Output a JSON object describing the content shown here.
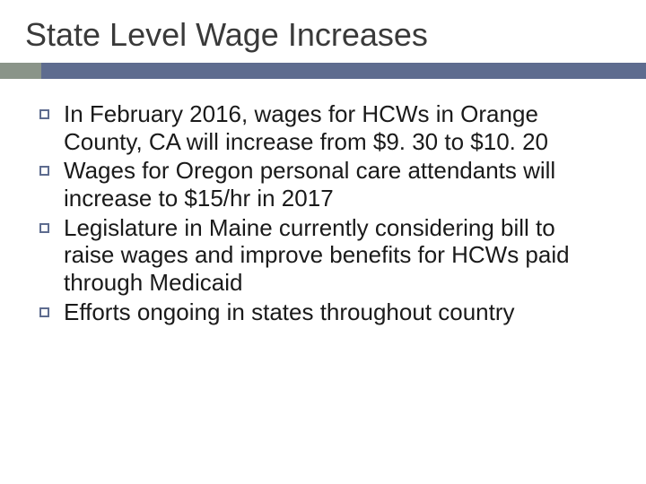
{
  "title": "State Level Wage Increases",
  "title_color": "#3b3b3b",
  "title_fontsize": 36,
  "rule": {
    "accent_color": "#8a9489",
    "bar_color": "#5e6c8f",
    "height": 18,
    "accent_width": 46
  },
  "bullet_style": {
    "marker_border_color": "#5e6c8f",
    "marker_size": 11,
    "marker_border_width": 2,
    "text_color": "#1a1a1a",
    "text_fontsize": 26
  },
  "bullets": [
    {
      "text": "In February 2016, wages for HCWs in Orange County, CA will increase from $9. 30 to $10. 20"
    },
    {
      "text": "Wages for Oregon personal care attendants will increase to  $15/hr in 2017"
    },
    {
      "text": "Legislature in Maine currently considering bill to raise wages and improve benefits for HCWs paid through Medicaid"
    },
    {
      "text": "Efforts ongoing in states throughout country"
    }
  ]
}
